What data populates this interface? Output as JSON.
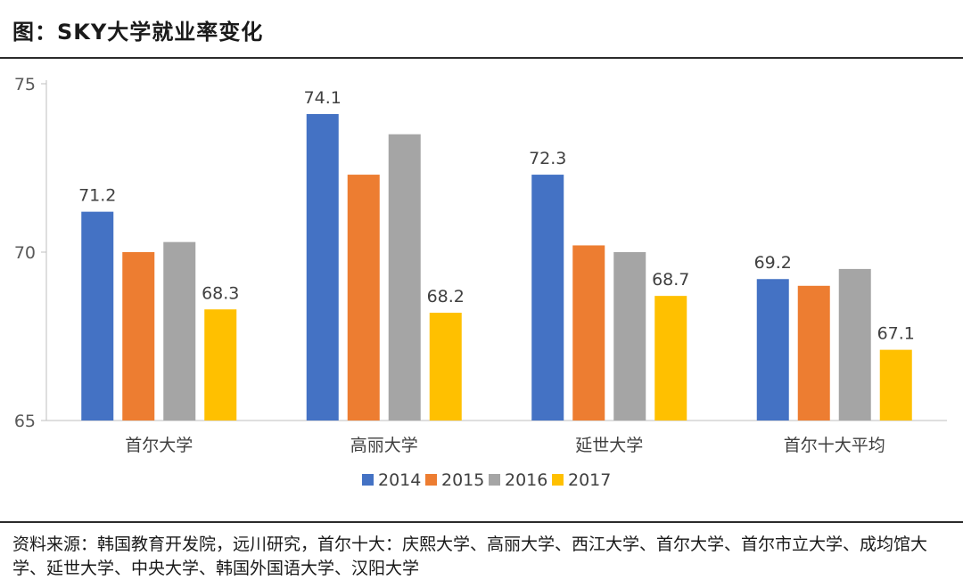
{
  "header": {
    "title": "图：SKY大学就业率变化"
  },
  "footer": {
    "source": "资料来源：韩国教育开发院，远川研究，首尔十大：庆熙大学、高丽大学、西江大学、首尔大学、首尔市立大学、成均馆大学、延世大学、中央大学、韩国外国语大学、汉阳大学"
  },
  "chart_data": {
    "type": "bar",
    "title": "SKY大学就业率变化",
    "categories": [
      "首尔大学",
      "高丽大学",
      "延世大学",
      "首尔十大平均"
    ],
    "series": [
      {
        "name": "2014",
        "color": "#4472C4",
        "values": [
          71.2,
          74.1,
          72.3,
          69.2
        ]
      },
      {
        "name": "2015",
        "color": "#ED7D31",
        "values": [
          70.0,
          72.3,
          70.2,
          69.0
        ]
      },
      {
        "name": "2016",
        "color": "#A5A5A5",
        "values": [
          70.3,
          73.5,
          70.0,
          69.5
        ]
      },
      {
        "name": "2017",
        "color": "#FFC000",
        "values": [
          68.3,
          68.2,
          68.7,
          67.1
        ]
      }
    ],
    "data_labels": [
      {
        "series": "2014",
        "category": "首尔大学",
        "text": "71.2"
      },
      {
        "series": "2017",
        "category": "首尔大学",
        "text": "68.3"
      },
      {
        "series": "2014",
        "category": "高丽大学",
        "text": "74.1"
      },
      {
        "series": "2017",
        "category": "高丽大学",
        "text": "68.2"
      },
      {
        "series": "2014",
        "category": "延世大学",
        "text": "72.3"
      },
      {
        "series": "2017",
        "category": "延世大学",
        "text": "68.7"
      },
      {
        "series": "2014",
        "category": "首尔十大平均",
        "text": "69.2"
      },
      {
        "series": "2017",
        "category": "首尔十大平均",
        "text": "67.1"
      }
    ],
    "ylim": [
      65,
      75
    ],
    "yticks": [
      65,
      70,
      75
    ],
    "xlabel": "",
    "ylabel": "",
    "grid": false,
    "legend_position": "bottom"
  }
}
